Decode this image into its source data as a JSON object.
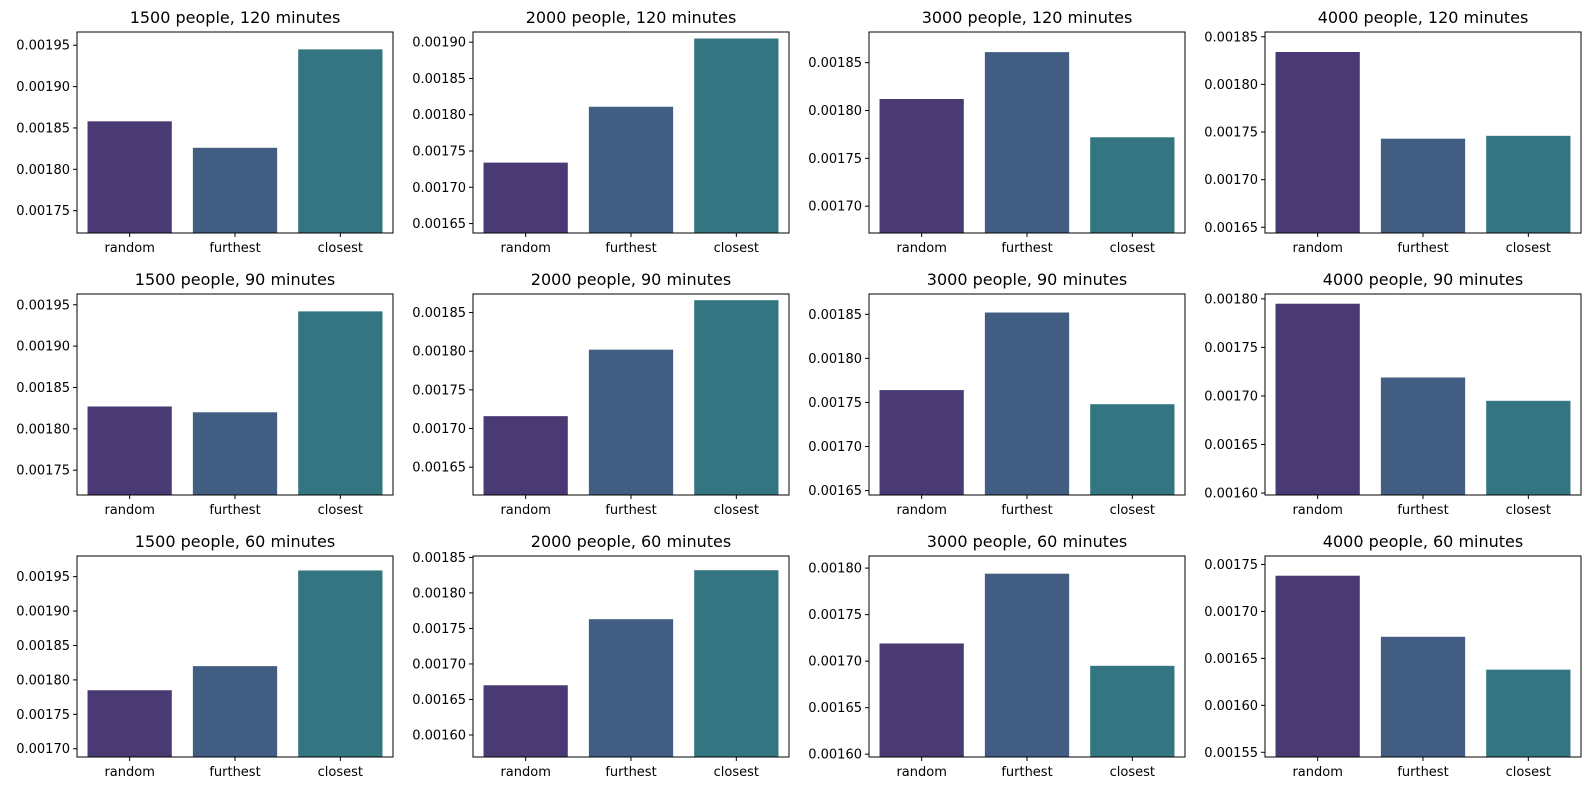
{
  "colors": {
    "random": "#4a3a73",
    "furthest": "#415e82",
    "closest": "#337681"
  },
  "chart_data": [
    {
      "type": "bar",
      "title": "1500 people, 120 minutes",
      "categories": [
        "random",
        "furthest",
        "closest"
      ],
      "values": [
        0.001858,
        0.001826,
        0.001945
      ],
      "ylim": [
        0.001723,
        0.001966
      ],
      "yticks": [
        "0.00175",
        "0.00180",
        "0.00185",
        "0.00190",
        "0.00195"
      ]
    },
    {
      "type": "bar",
      "title": "2000 people, 120 minutes",
      "categories": [
        "random",
        "furthest",
        "closest"
      ],
      "values": [
        0.001734,
        0.001811,
        0.001905
      ],
      "ylim": [
        0.001637,
        0.001914
      ],
      "yticks": [
        "0.00165",
        "0.00170",
        "0.00175",
        "0.00180",
        "0.00185",
        "0.00190"
      ]
    },
    {
      "type": "bar",
      "title": "3000 people, 120 minutes",
      "categories": [
        "random",
        "furthest",
        "closest"
      ],
      "values": [
        0.001812,
        0.001861,
        0.001772
      ],
      "ylim": [
        0.001672,
        0.001882
      ],
      "yticks": [
        "0.00170",
        "0.00175",
        "0.00180",
        "0.00185"
      ]
    },
    {
      "type": "bar",
      "title": "4000 people, 120 minutes",
      "categories": [
        "random",
        "furthest",
        "closest"
      ],
      "values": [
        0.001834,
        0.001743,
        0.001746
      ],
      "ylim": [
        0.001644,
        0.001855
      ],
      "yticks": [
        "0.00165",
        "0.00170",
        "0.00175",
        "0.00180",
        "0.00185"
      ]
    },
    {
      "type": "bar",
      "title": "1500 people, 90 minutes",
      "categories": [
        "random",
        "furthest",
        "closest"
      ],
      "values": [
        0.001827,
        0.00182,
        0.001942
      ],
      "ylim": [
        0.00172,
        0.001963
      ],
      "yticks": [
        "0.00175",
        "0.00180",
        "0.00185",
        "0.00190",
        "0.00195"
      ]
    },
    {
      "type": "bar",
      "title": "2000 people, 90 minutes",
      "categories": [
        "random",
        "furthest",
        "closest"
      ],
      "values": [
        0.001716,
        0.001802,
        0.001866
      ],
      "ylim": [
        0.001614,
        0.001874
      ],
      "yticks": [
        "0.00165",
        "0.00170",
        "0.00175",
        "0.00180",
        "0.00185"
      ]
    },
    {
      "type": "bar",
      "title": "3000 people, 90 minutes",
      "categories": [
        "random",
        "furthest",
        "closest"
      ],
      "values": [
        0.001764,
        0.001852,
        0.001748
      ],
      "ylim": [
        0.001645,
        0.001873
      ],
      "yticks": [
        "0.00165",
        "0.00170",
        "0.00175",
        "0.00180",
        "0.00185"
      ]
    },
    {
      "type": "bar",
      "title": "4000 people, 90 minutes",
      "categories": [
        "random",
        "furthest",
        "closest"
      ],
      "values": [
        0.001795,
        0.001719,
        0.001695
      ],
      "ylim": [
        0.001598,
        0.001805
      ],
      "yticks": [
        "0.00160",
        "0.00165",
        "0.00170",
        "0.00175",
        "0.00180"
      ]
    },
    {
      "type": "bar",
      "title": "1500 people, 60 minutes",
      "categories": [
        "random",
        "furthest",
        "closest"
      ],
      "values": [
        0.001785,
        0.00182,
        0.001959
      ],
      "ylim": [
        0.001688,
        0.00198
      ],
      "yticks": [
        "0.00170",
        "0.00175",
        "0.00180",
        "0.00185",
        "0.00190",
        "0.00195"
      ]
    },
    {
      "type": "bar",
      "title": "2000 people, 60 minutes",
      "categories": [
        "random",
        "furthest",
        "closest"
      ],
      "values": [
        0.00167,
        0.001763,
        0.001832
      ],
      "ylim": [
        0.001569,
        0.001852
      ],
      "yticks": [
        "0.00160",
        "0.00165",
        "0.00170",
        "0.00175",
        "0.00180",
        "0.00185"
      ]
    },
    {
      "type": "bar",
      "title": "3000 people, 60 minutes",
      "categories": [
        "random",
        "furthest",
        "closest"
      ],
      "values": [
        0.001719,
        0.001794,
        0.001695
      ],
      "ylim": [
        0.001597,
        0.001813
      ],
      "yticks": [
        "0.00160",
        "0.00165",
        "0.00170",
        "0.00175",
        "0.00180"
      ]
    },
    {
      "type": "bar",
      "title": "4000 people, 60 minutes",
      "categories": [
        "random",
        "furthest",
        "closest"
      ],
      "values": [
        0.001738,
        0.001673,
        0.001638
      ],
      "ylim": [
        0.001545,
        0.001759
      ],
      "yticks": [
        "0.00155",
        "0.00160",
        "0.00165",
        "0.00170",
        "0.00175"
      ]
    }
  ]
}
